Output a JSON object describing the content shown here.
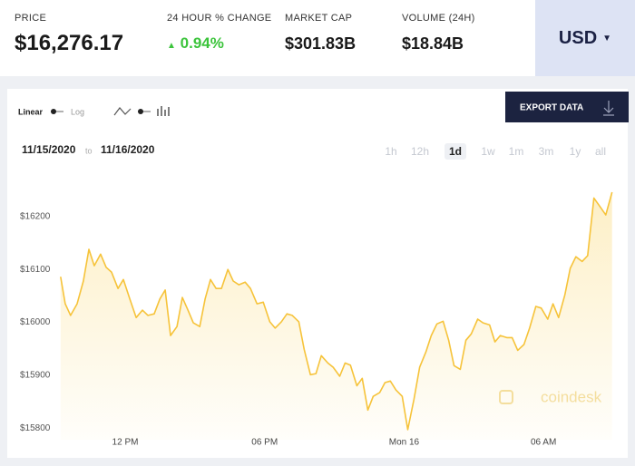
{
  "header": {
    "price": {
      "label": "PRICE",
      "value": "$16,276.17"
    },
    "change": {
      "label": "24 HOUR % CHANGE",
      "value": "0.94%"
    },
    "market_cap": {
      "label": "MARKET CAP",
      "value": "$301.83B"
    },
    "volume": {
      "label": "VOLUME (24H)",
      "value": "$18.84B"
    },
    "currency": "USD"
  },
  "controls": {
    "scale": {
      "linear": "Linear",
      "log": "Log"
    },
    "export": "EXPORT DATA",
    "date_from": "11/15/2020",
    "date_sep": "to",
    "date_to": "11/16/2020",
    "ranges": [
      "1h",
      "12h",
      "1d",
      "1w",
      "1m",
      "3m",
      "1y",
      "all"
    ],
    "selected_range": "1d",
    "watermark": "coindesk"
  },
  "chart_data": {
    "type": "line",
    "color": "#f6c33a",
    "grid": false,
    "x": [
      9.22,
      9.42,
      9.65,
      9.93,
      10.2,
      10.44,
      10.67,
      10.94,
      11.18,
      11.41,
      11.69,
      11.92,
      12.2,
      12.47,
      12.74,
      12.98,
      13.25,
      13.49,
      13.72,
      13.95,
      14.23,
      14.46,
      14.7,
      14.93,
      15.21,
      15.44,
      15.67,
      15.91,
      16.14,
      16.42,
      16.65,
      16.89,
      17.16,
      17.39,
      17.67,
      17.94,
      18.22,
      18.45,
      18.72,
      18.96,
      19.19,
      19.47,
      19.7,
      19.97,
      20.21,
      20.44,
      20.72,
      20.95,
      21.23,
      21.46,
      21.69,
      21.97,
      22.2,
      22.44,
      22.67,
      22.95,
      23.18,
      23.41,
      23.65,
      23.92,
      24.16,
      24.43,
      24.67,
      24.94,
      25.17,
      25.41,
      25.68,
      25.92,
      26.15,
      26.42,
      26.66,
      26.89,
      27.17,
      27.4,
      27.68,
      27.91,
      28.14,
      28.42,
      28.65,
      28.89,
      29.16,
      29.4,
      29.67,
      29.9,
      30.18,
      30.41,
      30.65,
      30.92,
      31.15,
      31.39,
      31.66,
      31.9,
      32.17,
      32.44,
      32.68,
      32.95
    ],
    "values": [
      16086,
      16035,
      16013,
      16035,
      16078,
      16138,
      16107,
      16129,
      16104,
      16095,
      16064,
      16081,
      16044,
      16009,
      16023,
      16013,
      16016,
      16044,
      16061,
      15975,
      15992,
      16047,
      16023,
      15999,
      15992,
      16044,
      16081,
      16064,
      16064,
      16100,
      16078,
      16071,
      16076,
      16064,
      16035,
      16038,
      16001,
      15989,
      16001,
      16016,
      16013,
      16001,
      15949,
      15901,
      15903,
      15937,
      15923,
      15915,
      15898,
      15923,
      15919,
      15880,
      15894,
      15834,
      15860,
      15867,
      15886,
      15889,
      15872,
      15860,
      15797,
      15855,
      15915,
      15944,
      15975,
      15997,
      16002,
      15966,
      15918,
      15911,
      15966,
      15978,
      16006,
      15999,
      15995,
      15963,
      15975,
      15971,
      15971,
      15947,
      15958,
      15989,
      16030,
      16027,
      16006,
      16035,
      16009,
      16052,
      16102,
      16124,
      16115,
      16126,
      16235,
      16218,
      16203,
      16246
    ],
    "xlim": [
      9.15,
      33.0
    ],
    "ylim": [
      15778,
      16300
    ],
    "xticks": [
      {
        "value": 12,
        "label": "12 PM"
      },
      {
        "value": 18,
        "label": "06 PM"
      },
      {
        "value": 24,
        "label": "Mon 16"
      },
      {
        "value": 30,
        "label": "06 AM"
      }
    ],
    "yticks": [
      {
        "value": 15800,
        "label": "$15800"
      },
      {
        "value": 15900,
        "label": "$15900"
      },
      {
        "value": 16000,
        "label": "$16000"
      },
      {
        "value": 16100,
        "label": "$16100"
      },
      {
        "value": 16200,
        "label": "$16200"
      }
    ]
  }
}
